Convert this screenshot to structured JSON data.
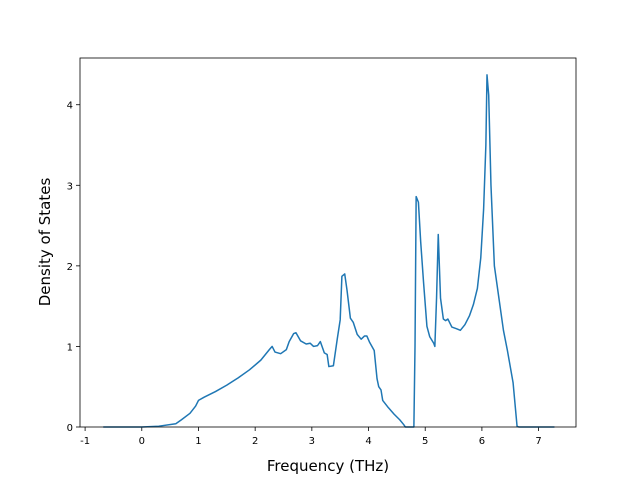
{
  "chart_data": {
    "type": "line",
    "xlabel": "Frequency (THz)",
    "ylabel": "Density of States",
    "xlim": [
      -1.09,
      7.66
    ],
    "ylim": [
      0,
      4.58
    ],
    "xticks": [
      -1,
      0,
      1,
      2,
      3,
      4,
      5,
      6,
      7
    ],
    "yticks": [
      0,
      1,
      2,
      3,
      4
    ],
    "grid": false,
    "series": [
      {
        "color": "#1f77b4",
        "x": [
          -0.68,
          0,
          0.3,
          0.6,
          0.7,
          0.85,
          0.95,
          1.0,
          1.1,
          1.3,
          1.5,
          1.7,
          1.9,
          2.1,
          2.25,
          2.3,
          2.35,
          2.45,
          2.55,
          2.6,
          2.68,
          2.72,
          2.8,
          2.9,
          2.97,
          3.03,
          3.1,
          3.15,
          3.22,
          3.27,
          3.3,
          3.38,
          3.45,
          3.5,
          3.53,
          3.58,
          3.62,
          3.68,
          3.73,
          3.8,
          3.87,
          3.93,
          3.97,
          4.02,
          4.1,
          4.15,
          4.18,
          4.22,
          4.25,
          4.35,
          4.45,
          4.55,
          4.62,
          4.65,
          4.8,
          4.82,
          4.84,
          4.88,
          4.92,
          4.97,
          5.03,
          5.08,
          5.15,
          5.17,
          5.2,
          5.23,
          5.27,
          5.32,
          5.36,
          5.4,
          5.47,
          5.55,
          5.62,
          5.7,
          5.78,
          5.85,
          5.92,
          5.98,
          6.03,
          6.07,
          6.09,
          6.12,
          6.16,
          6.22,
          6.3,
          6.38,
          6.45,
          6.55,
          6.62,
          6.65,
          7.28
        ],
        "values": [
          0,
          0,
          0.01,
          0.04,
          0.09,
          0.17,
          0.26,
          0.33,
          0.37,
          0.44,
          0.52,
          0.61,
          0.71,
          0.83,
          0.96,
          1.0,
          0.93,
          0.91,
          0.96,
          1.06,
          1.16,
          1.17,
          1.07,
          1.03,
          1.04,
          1.0,
          1.01,
          1.06,
          0.92,
          0.9,
          0.75,
          0.76,
          1.1,
          1.33,
          1.87,
          1.9,
          1.7,
          1.35,
          1.3,
          1.15,
          1.09,
          1.13,
          1.13,
          1.05,
          0.95,
          0.6,
          0.5,
          0.46,
          0.33,
          0.24,
          0.16,
          0.09,
          0.03,
          0,
          0,
          1.0,
          2.86,
          2.79,
          2.3,
          1.8,
          1.25,
          1.12,
          1.04,
          1.0,
          1.6,
          2.39,
          1.6,
          1.34,
          1.32,
          1.34,
          1.24,
          1.22,
          1.2,
          1.27,
          1.38,
          1.52,
          1.72,
          2.1,
          2.7,
          3.5,
          4.37,
          4.12,
          3.0,
          2.0,
          1.6,
          1.2,
          0.95,
          0.55,
          0.01,
          0,
          0
        ]
      }
    ]
  }
}
